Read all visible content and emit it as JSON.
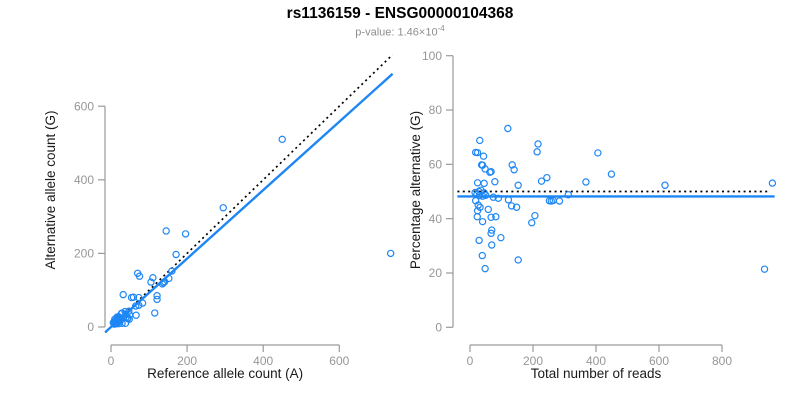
{
  "header": {
    "title": "rs1136159 - ENSG00000104368",
    "subtitle_prefix": "p-value: ",
    "subtitle_mantissa": "1.46×10",
    "subtitle_exponent": "-4"
  },
  "colors": {
    "point_blue": "#1e87f5",
    "fit_blue": "#1e87f5",
    "dotted_black": "#000000",
    "axis_gray": "#9a9a9a",
    "tick_label_gray": "#979797",
    "axis_title_dark": "#1a1a1a"
  },
  "chart_data": [
    {
      "type": "scatter",
      "title": "",
      "xlabel": "Reference allele count (A)",
      "ylabel": "Alternative allele count (G)",
      "xlim": [
        0,
        740
      ],
      "ylim": [
        0,
        740
      ],
      "xticks": [
        0,
        200,
        400,
        600
      ],
      "yticks": [
        0,
        200,
        400,
        600
      ],
      "grid": false,
      "legend": "none",
      "lines": [
        {
          "name": "identity-line",
          "style": "dotted",
          "color": "dotted_black",
          "x1": -15,
          "y1": -15,
          "x2": 740,
          "y2": 740
        },
        {
          "name": "fit-line",
          "style": "solid",
          "color": "fit_blue",
          "x1": -15,
          "y1": -14,
          "x2": 740,
          "y2": 688
        }
      ],
      "points": [
        [
          450,
          510
        ],
        [
          735,
          200
        ],
        [
          295,
          324
        ],
        [
          196,
          253
        ],
        [
          145,
          261
        ],
        [
          171,
          197
        ],
        [
          160,
          152
        ],
        [
          152,
          132
        ],
        [
          141,
          123
        ],
        [
          138,
          120
        ],
        [
          135,
          117
        ],
        [
          110,
          134
        ],
        [
          105,
          122
        ],
        [
          70,
          146
        ],
        [
          75,
          138
        ],
        [
          121,
          85
        ],
        [
          121,
          75
        ],
        [
          73,
          80
        ],
        [
          115,
          38
        ],
        [
          83,
          65
        ],
        [
          59,
          81
        ],
        [
          54,
          80
        ],
        [
          73,
          59
        ],
        [
          65,
          57
        ],
        [
          32,
          88
        ],
        [
          66,
          32
        ],
        [
          47,
          43
        ],
        [
          49,
          33
        ],
        [
          37,
          42
        ],
        [
          39,
          35
        ],
        [
          44,
          25
        ],
        [
          48,
          21
        ],
        [
          44,
          23
        ],
        [
          40,
          27
        ],
        [
          29,
          38
        ],
        [
          27,
          36
        ],
        [
          33,
          25
        ],
        [
          20,
          28
        ],
        [
          38,
          10
        ],
        [
          21,
          24
        ],
        [
          16,
          27
        ],
        [
          24,
          16
        ],
        [
          16,
          24
        ],
        [
          29,
          10
        ],
        [
          15,
          22
        ],
        [
          18,
          14
        ],
        [
          10,
          21
        ],
        [
          20,
          9
        ],
        [
          14,
          14
        ],
        [
          14,
          12
        ],
        [
          14,
          10
        ],
        [
          11,
          13
        ],
        [
          9,
          15
        ],
        [
          14,
          9
        ],
        [
          11,
          11
        ],
        [
          10,
          8
        ],
        [
          6,
          12
        ],
        [
          8,
          8
        ],
        [
          15,
          15
        ],
        [
          17,
          18
        ],
        [
          21,
          19
        ],
        [
          23,
          22
        ],
        [
          26,
          24
        ]
      ]
    },
    {
      "type": "scatter",
      "title": "",
      "xlabel": "Total number of reads",
      "ylabel": "Percentage alternative (G)",
      "xlim": [
        0,
        970
      ],
      "ylim": [
        0,
        100
      ],
      "xticks": [
        0,
        200,
        400,
        600,
        800
      ],
      "yticks": [
        0,
        20,
        40,
        60,
        80,
        100
      ],
      "grid": false,
      "legend": "none",
      "lines": [
        {
          "name": "expected-50pct-line",
          "style": "dotted",
          "color": "dotted_black",
          "x1": -40,
          "y1": 50,
          "x2": 948,
          "y2": 50
        },
        {
          "name": "fit-line",
          "style": "solid",
          "color": "fit_blue",
          "x1": -40,
          "y1": 48.2,
          "x2": 967,
          "y2": 48.2
        }
      ],
      "points": [
        [
          960,
          53.1
        ],
        [
          935,
          21.4
        ],
        [
          619,
          52.3
        ],
        [
          449,
          56.4
        ],
        [
          406,
          64.2
        ],
        [
          368,
          53.5
        ],
        [
          312,
          48.8
        ],
        [
          284,
          46.5
        ],
        [
          264,
          46.7
        ],
        [
          258,
          46.5
        ],
        [
          252,
          46.6
        ],
        [
          244,
          55.1
        ],
        [
          227,
          53.8
        ],
        [
          216,
          67.5
        ],
        [
          213,
          64.6
        ],
        [
          206,
          41.1
        ],
        [
          196,
          38.5
        ],
        [
          153,
          52.3
        ],
        [
          153,
          24.8
        ],
        [
          148,
          44.2
        ],
        [
          140,
          58.0
        ],
        [
          134,
          59.8
        ],
        [
          132,
          44.7
        ],
        [
          122,
          46.9
        ],
        [
          120,
          73.2
        ],
        [
          98,
          33.0
        ],
        [
          90,
          47.5
        ],
        [
          82,
          40.7
        ],
        [
          79,
          53.6
        ],
        [
          74,
          47.9
        ],
        [
          69,
          35.8
        ],
        [
          69,
          30.3
        ],
        [
          67,
          34.6
        ],
        [
          67,
          40.5
        ],
        [
          67,
          57.3
        ],
        [
          63,
          57.1
        ],
        [
          58,
          43.4
        ],
        [
          48,
          58.3
        ],
        [
          48,
          21.6
        ],
        [
          45,
          53.0
        ],
        [
          43,
          63.0
        ],
        [
          40,
          38.9
        ],
        [
          40,
          59.7
        ],
        [
          39,
          26.4
        ],
        [
          37,
          59.8
        ],
        [
          32,
          44.2
        ],
        [
          31,
          68.8
        ],
        [
          29,
          32.0
        ],
        [
          28,
          50.0
        ],
        [
          26,
          45.0
        ],
        [
          24,
          42.9
        ],
        [
          24,
          53.2
        ],
        [
          24,
          64.3
        ],
        [
          23,
          40.7
        ],
        [
          22,
          48.9
        ],
        [
          18,
          46.6
        ],
        [
          18,
          64.4
        ],
        [
          16,
          49.6
        ],
        [
          30,
          48.5
        ],
        [
          35,
          50.5
        ],
        [
          40,
          48.3
        ],
        [
          45,
          49.5
        ],
        [
          50,
          48.6
        ]
      ]
    }
  ]
}
